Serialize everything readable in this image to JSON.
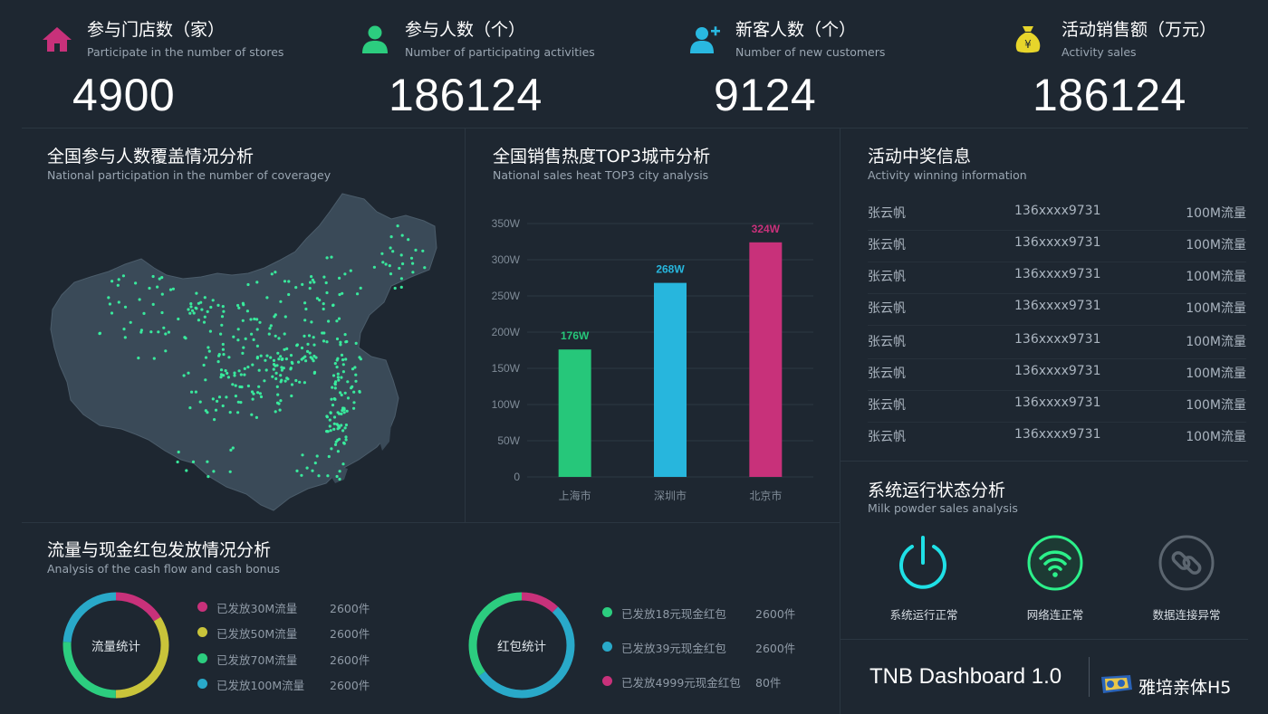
{
  "stats": [
    {
      "title": "参与门店数（家）",
      "subtitle": "Participate in the number of stores",
      "value": "4900",
      "icon": "home-icon",
      "color": "#c8317a"
    },
    {
      "title": "参与人数（个）",
      "subtitle": "Number of participating activities",
      "value": "186124",
      "icon": "user-icon",
      "color": "#2ccd7f"
    },
    {
      "title": "新客人数（个）",
      "subtitle": "Number of new customers",
      "value": "9124",
      "icon": "user-add-icon",
      "color": "#29b8e0"
    },
    {
      "title": "活动销售额（万元）",
      "subtitle": "Activity sales",
      "value": "186124",
      "icon": "money-bag-icon",
      "color": "#e7d52b",
      "glyph": "¥"
    }
  ],
  "map_panel": {
    "title": "全国参与人数覆盖情况分析",
    "subtitle": "National participation in the number of coveragey"
  },
  "bar_panel": {
    "title": "全国销售热度TOP3城市分析",
    "subtitle": "National sales heat TOP3 city analysis"
  },
  "win_panel": {
    "title": "活动中奖信息",
    "subtitle": "Activity winning information",
    "rows": [
      {
        "name": "张云帆",
        "phone": "136xxxx9731",
        "prize": "100M流量"
      },
      {
        "name": "张云帆",
        "phone": "136xxxx9731",
        "prize": "100M流量"
      },
      {
        "name": "张云帆",
        "phone": "136xxxx9731",
        "prize": "100M流量"
      },
      {
        "name": "张云帆",
        "phone": "136xxxx9731",
        "prize": "100M流量"
      },
      {
        "name": "张云帆",
        "phone": "136xxxx9731",
        "prize": "100M流量"
      },
      {
        "name": "张云帆",
        "phone": "136xxxx9731",
        "prize": "100M流量"
      },
      {
        "name": "张云帆",
        "phone": "136xxxx9731",
        "prize": "100M流量"
      },
      {
        "name": "张云帆",
        "phone": "136xxxx9731",
        "prize": "100M流量"
      }
    ]
  },
  "flow_panel": {
    "title": "流量与现金红包发放情况分析",
    "subtitle": "Analysis of the cash flow and cash bonus",
    "donut1": {
      "label": "流量统计",
      "items": [
        {
          "label": "已发放30M流量",
          "count": "2600件",
          "color": "#c8317a"
        },
        {
          "label": "已发放50M流量",
          "count": "2600件",
          "color": "#c9c43a"
        },
        {
          "label": "已发放70M流量",
          "count": "2600件",
          "color": "#2ccd7f"
        },
        {
          "label": "已发放100M流量",
          "count": "2600件",
          "color": "#29a9c9"
        }
      ]
    },
    "donut2": {
      "label": "红包统计",
      "items": [
        {
          "label": "已发放18元现金红包",
          "count": "2600件",
          "color": "#2ccd7f"
        },
        {
          "label": "已发放39元现金红包",
          "count": "2600件",
          "color": "#29a9c9"
        },
        {
          "label": "已发放4999元现金红包",
          "count": "80件",
          "color": "#c8317a"
        }
      ]
    }
  },
  "system_panel": {
    "title": "系统运行状态分析",
    "subtitle": "Milk powder sales analysis",
    "items": [
      {
        "label": "系统运行正常",
        "icon": "power-icon",
        "color": "#1fe0e6"
      },
      {
        "label": "网络连正常",
        "icon": "wifi-icon",
        "color": "#2cf08a"
      },
      {
        "label": "数据连接异常",
        "icon": "link-icon",
        "color": "#5c6670"
      }
    ]
  },
  "footer": {
    "product": "TNB Dashboard 1.0",
    "brand": "雅培亲体H5"
  },
  "chart_data": {
    "type": "bar",
    "categories": [
      "上海市",
      "深圳市",
      "北京市"
    ],
    "values": [
      176,
      268,
      324
    ],
    "value_labels": [
      "176W",
      "268W",
      "324W"
    ],
    "colors": [
      "#26c77a",
      "#27b6dd",
      "#c8317a"
    ],
    "yticks": [
      "0",
      "50W",
      "100W",
      "150W",
      "200W",
      "250W",
      "300W",
      "350W"
    ],
    "ylim": [
      0,
      350
    ],
    "grid": true,
    "title": "",
    "xlabel": "",
    "ylabel": ""
  }
}
